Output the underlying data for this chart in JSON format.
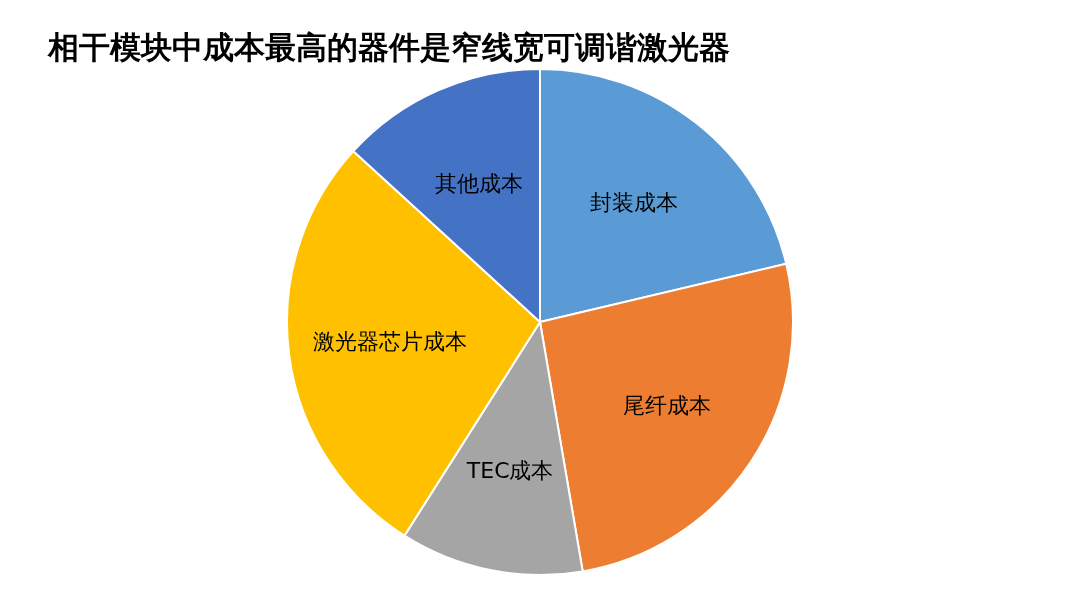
{
  "chart_data": {
    "type": "pie",
    "title": "相干模块中成本最高的器件是窄线宽可调谐激光器",
    "categories": [
      "封装成本",
      "尾纤成本",
      "TEC成本",
      "激光器芯片成本",
      "其他成本"
    ],
    "values": [
      21.3,
      26,
      11.7,
      27.8,
      13.2
    ],
    "colors": [
      "#5b9bd5",
      "#ed7d31",
      "#a5a5a5",
      "#ffc000",
      "#4472c4"
    ]
  }
}
